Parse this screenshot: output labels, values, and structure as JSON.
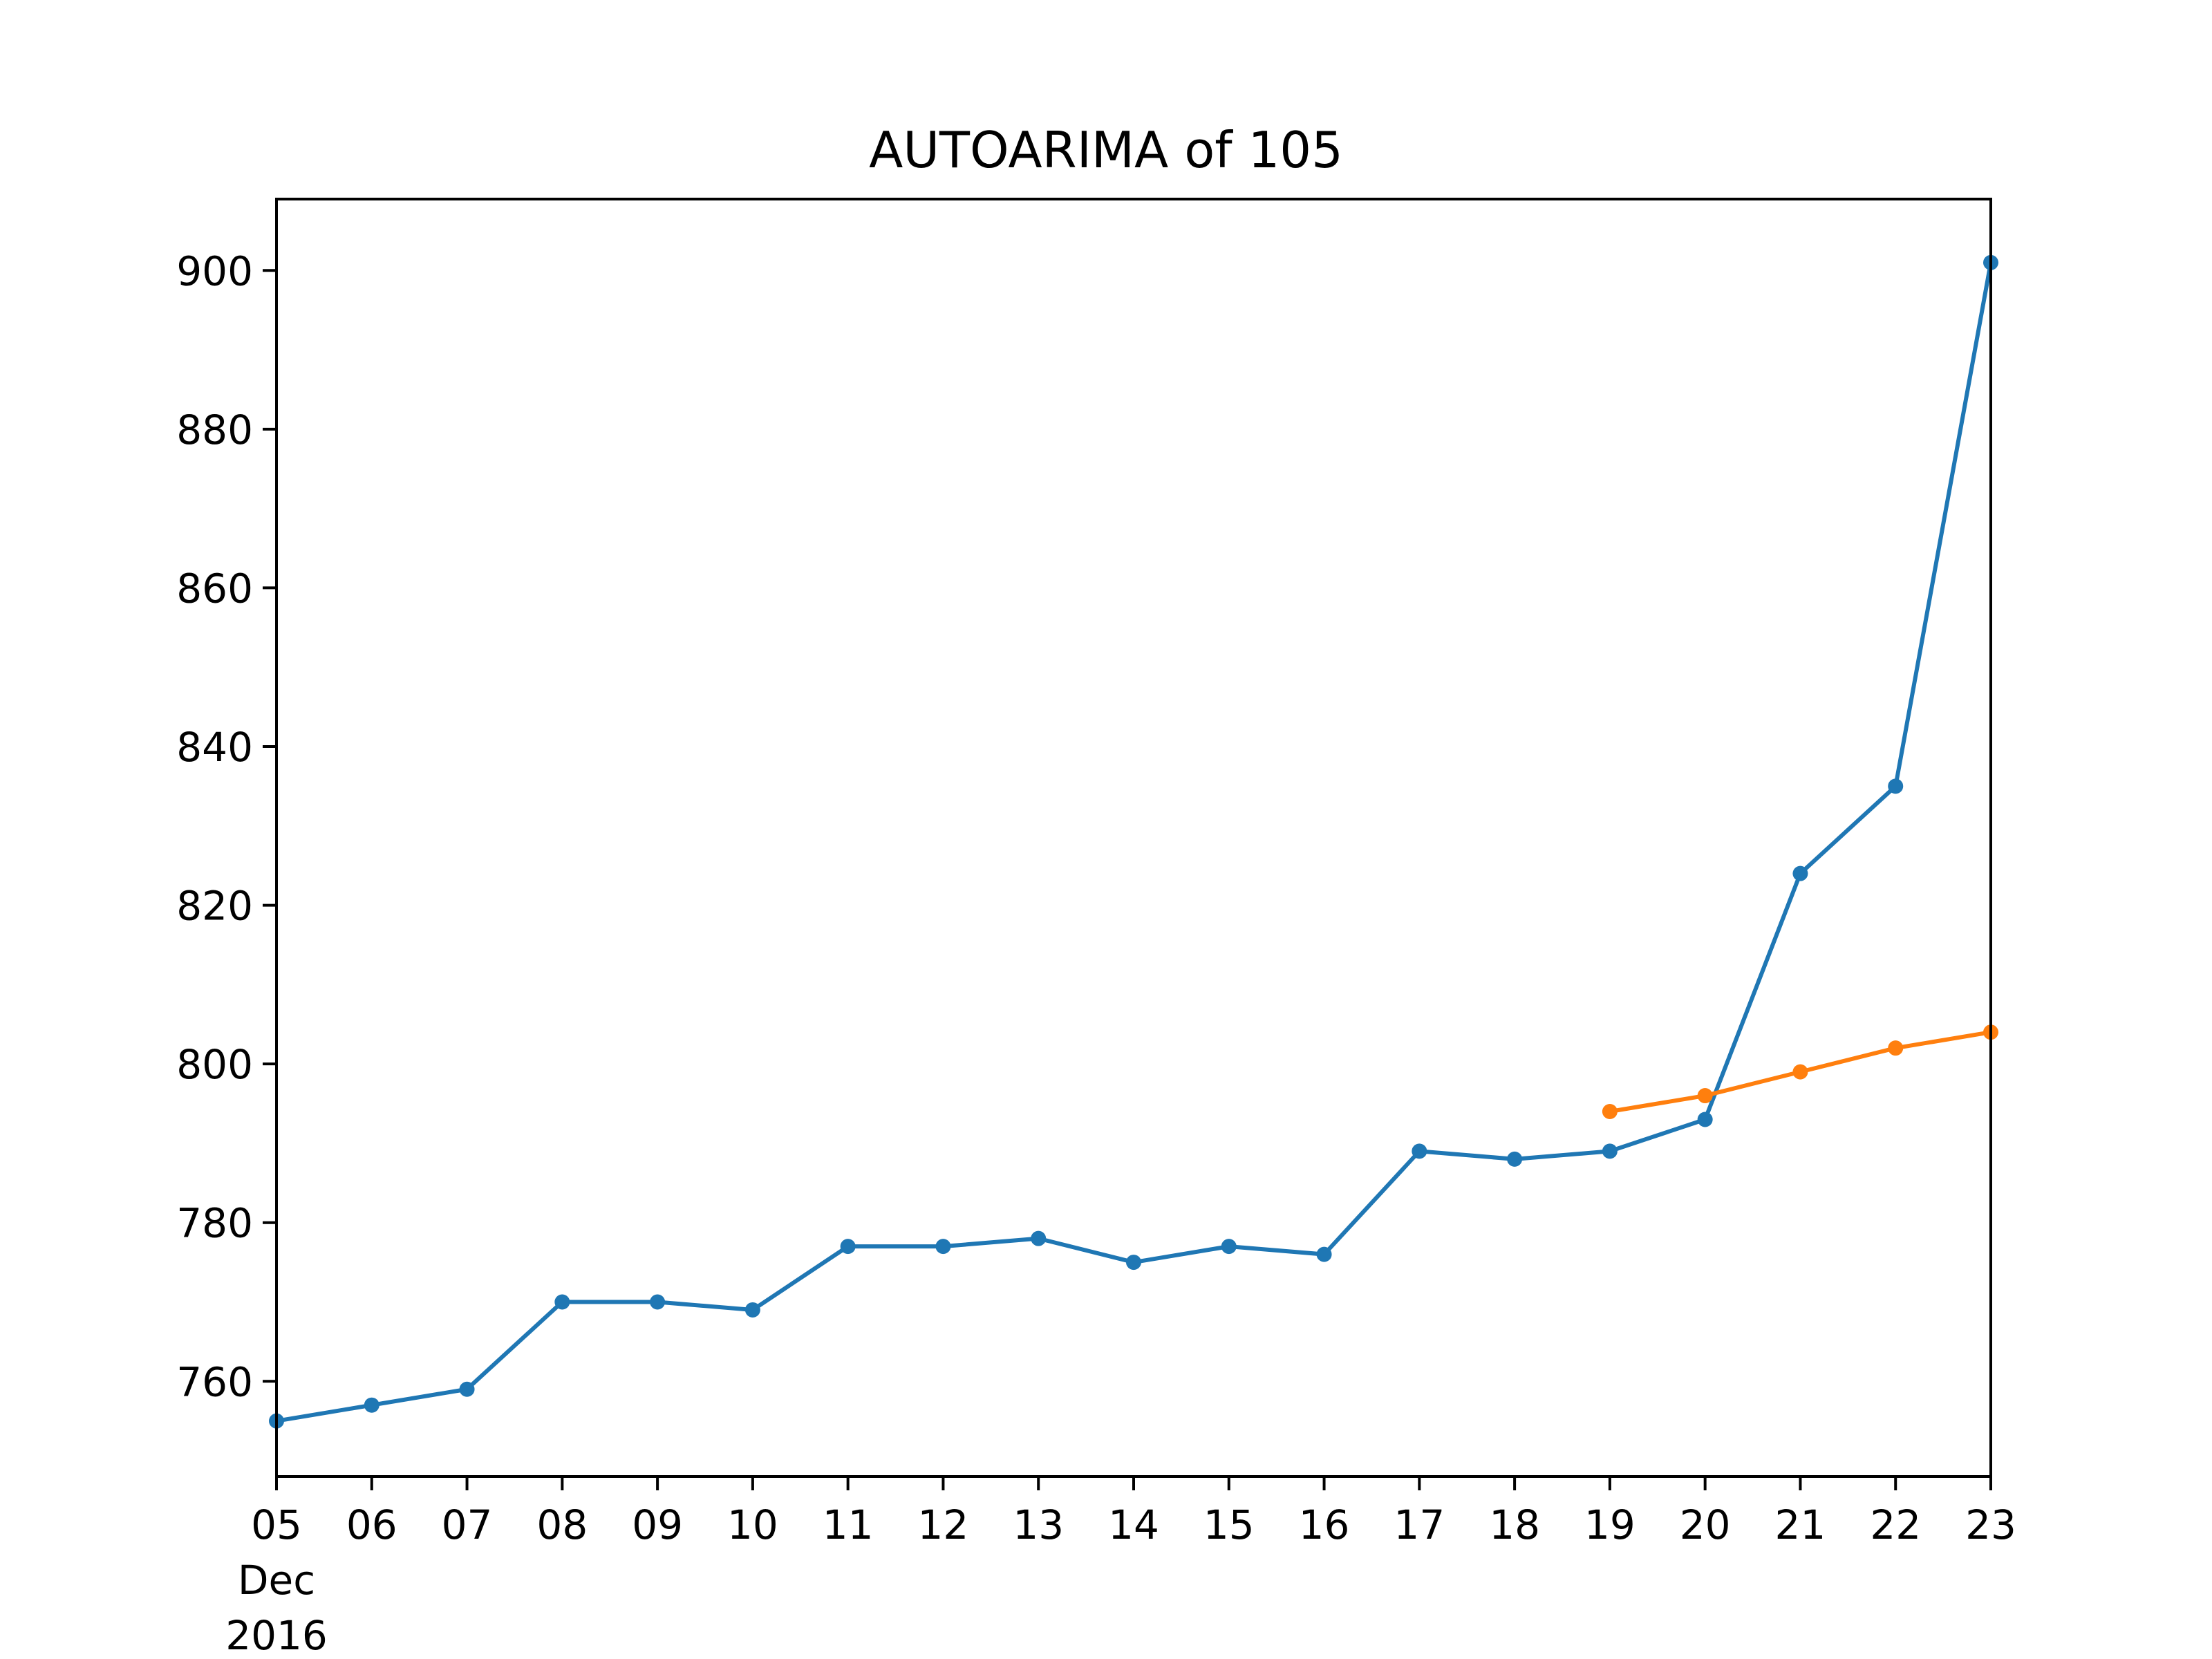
{
  "chart_data": {
    "type": "line",
    "title": "AUTOARIMA of 105",
    "xlabel": "",
    "ylabel": "",
    "x": [
      "2016-12-05",
      "2016-12-06",
      "2016-12-07",
      "2016-12-08",
      "2016-12-09",
      "2016-12-10",
      "2016-12-11",
      "2016-12-12",
      "2016-12-13",
      "2016-12-14",
      "2016-12-15",
      "2016-12-16",
      "2016-12-17",
      "2016-12-18",
      "2016-12-19",
      "2016-12-20",
      "2016-12-21",
      "2016-12-22",
      "2016-12-23"
    ],
    "x_tick_labels": [
      "05",
      "06",
      "07",
      "08",
      "09",
      "10",
      "11",
      "12",
      "13",
      "14",
      "15",
      "16",
      "17",
      "18",
      "19",
      "20",
      "21",
      "22",
      "23"
    ],
    "x_tick_sublabels": [
      "Dec",
      "2016"
    ],
    "xlim": [
      "2016-12-05",
      "2016-12-23"
    ],
    "y_ticks": [
      760,
      780,
      800,
      820,
      840,
      860,
      880,
      900
    ],
    "ylim": [
      748,
      909
    ],
    "grid": false,
    "legend": "none",
    "series": [
      {
        "color": "#1f77b4",
        "x": [
          "2016-12-05",
          "2016-12-06",
          "2016-12-07",
          "2016-12-08",
          "2016-12-09",
          "2016-12-10",
          "2016-12-11",
          "2016-12-12",
          "2016-12-13",
          "2016-12-14",
          "2016-12-15",
          "2016-12-16",
          "2016-12-17",
          "2016-12-18",
          "2016-12-19",
          "2016-12-20",
          "2016-12-21",
          "2016-12-22",
          "2016-12-23"
        ],
        "values": [
          755,
          757,
          759,
          770,
          770,
          769,
          777,
          777,
          778,
          775,
          777,
          776,
          789,
          788,
          789,
          793,
          824,
          835,
          901
        ]
      },
      {
        "color": "#ff7f0e",
        "x": [
          "2016-12-19",
          "2016-12-20",
          "2016-12-21",
          "2016-12-22",
          "2016-12-23"
        ],
        "values": [
          794,
          796,
          799,
          802,
          804
        ]
      }
    ]
  }
}
